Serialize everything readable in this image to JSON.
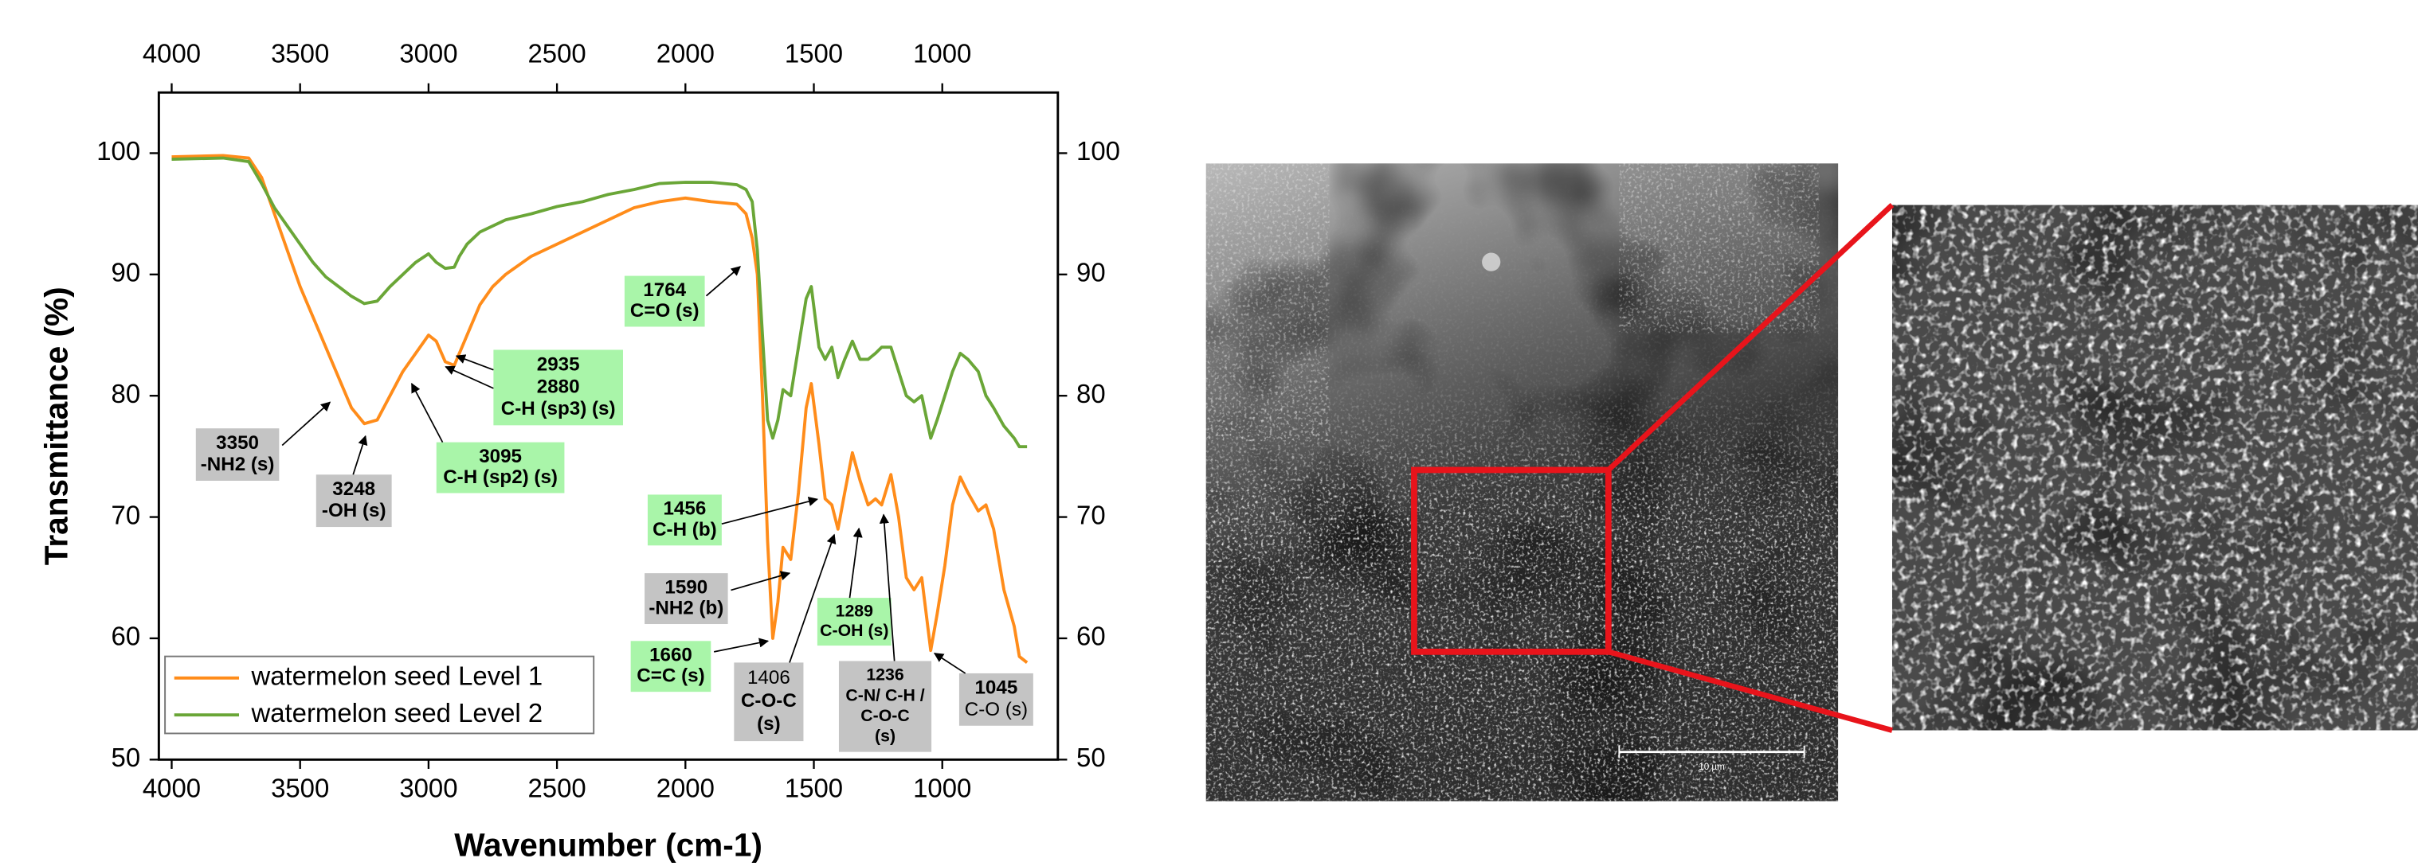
{
  "chart_data": {
    "type": "line",
    "x_label": "Wavenumber (cm-1)",
    "y_label": "Transmittance (%)",
    "xlim": [
      4050,
      550
    ],
    "ylim": [
      50,
      105
    ],
    "xticks": [
      4000,
      3500,
      3000,
      2500,
      2000,
      1500,
      1000
    ],
    "yticks": [
      50,
      60,
      70,
      80,
      90,
      100
    ],
    "legend": "lower left",
    "mirror_axes": true,
    "x": [
      4000,
      3800,
      3700,
      3650,
      3600,
      3550,
      3500,
      3450,
      3400,
      3350,
      3300,
      3250,
      3200,
      3150,
      3100,
      3050,
      3000,
      2970,
      2935,
      2900,
      2880,
      2850,
      2800,
      2750,
      2700,
      2600,
      2500,
      2400,
      2300,
      2200,
      2100,
      2000,
      1900,
      1800,
      1764,
      1740,
      1720,
      1700,
      1680,
      1660,
      1640,
      1620,
      1590,
      1560,
      1530,
      1510,
      1480,
      1456,
      1430,
      1406,
      1380,
      1350,
      1320,
      1289,
      1260,
      1236,
      1200,
      1170,
      1140,
      1110,
      1080,
      1045,
      1020,
      990,
      960,
      930,
      900,
      860,
      830,
      800,
      760,
      720,
      700,
      670
    ],
    "series": [
      {
        "name": "watermelon seed Level 1",
        "color": "#ff8c1a",
        "values": [
          99.7,
          99.8,
          99.6,
          98,
          95,
          92,
          89,
          86.5,
          84,
          81.5,
          79,
          77.7,
          78,
          80,
          82,
          83.5,
          85,
          84.5,
          82.8,
          82.5,
          83.5,
          85,
          87.5,
          89,
          90,
          91.5,
          92.5,
          93.5,
          94.5,
          95.5,
          96,
          96.3,
          96,
          95.8,
          95,
          93,
          90,
          80,
          68,
          60,
          63,
          67.5,
          66.5,
          72,
          79,
          81,
          76,
          71.5,
          71,
          69,
          72,
          75.3,
          73,
          71,
          71.5,
          71,
          73.5,
          70,
          65,
          64,
          65,
          59,
          62,
          66,
          71,
          73.3,
          72,
          70.5,
          71,
          69,
          64,
          61,
          58.5,
          58
        ]
      },
      {
        "name": "watermelon seed Level 2",
        "color": "#6aa637",
        "values": [
          99.5,
          99.6,
          99.3,
          97.5,
          95.5,
          94,
          92.5,
          91,
          89.8,
          89,
          88.2,
          87.6,
          87.8,
          89,
          90,
          91,
          91.7,
          91,
          90.5,
          90.6,
          91.5,
          92.5,
          93.5,
          94,
          94.5,
          95,
          95.6,
          96,
          96.6,
          97,
          97.5,
          97.6,
          97.6,
          97.4,
          97,
          96,
          92,
          85,
          78,
          76.5,
          78,
          80.5,
          80,
          84,
          88,
          89,
          84,
          83,
          84,
          81.5,
          83,
          84.5,
          83,
          83,
          83.5,
          84,
          84,
          82,
          80,
          79.5,
          80,
          76.5,
          78,
          80,
          82,
          83.5,
          83,
          82,
          80,
          79,
          77.5,
          76.5,
          75.8,
          75.8
        ]
      }
    ],
    "annotations": [
      {
        "lines": [
          "3350",
          "-NH2 (s)"
        ],
        "color": "#c4c4c4"
      },
      {
        "lines": [
          "3248",
          "-OH (s)"
        ],
        "color": "#c4c4c4"
      },
      {
        "lines": [
          "3095",
          "C-H (sp2) (s)"
        ],
        "color": "#a9f5a9"
      },
      {
        "lines": [
          "2935",
          "2880",
          "C-H (sp3) (s)"
        ],
        "color": "#a9f5a9"
      },
      {
        "lines": [
          "1764",
          "C=O (s)"
        ],
        "color": "#a9f5a9"
      },
      {
        "lines": [
          "1456",
          "C-H (b)"
        ],
        "color": "#a9f5a9"
      },
      {
        "lines": [
          "1590",
          "-NH2 (b)"
        ],
        "color": "#c4c4c4"
      },
      {
        "lines": [
          "1660",
          "C=C (s)"
        ],
        "color": "#a9f5a9"
      },
      {
        "lines": [
          "1406",
          "C-O-C",
          "(s)"
        ],
        "color": "#c4c4c4"
      },
      {
        "lines": [
          "1289",
          "C-OH (s)"
        ],
        "color": "#a9f5a9"
      },
      {
        "lines": [
          "1236",
          "C-N/ C-H /",
          "C-O-C",
          "(s)"
        ],
        "color": "#c4c4c4"
      },
      {
        "lines": [
          "1045",
          "C-O (s)"
        ],
        "color": "#c4c4c4"
      }
    ]
  },
  "sem_image": {
    "scale_bar": "10 µm",
    "highlight_color": "#e8141b"
  }
}
